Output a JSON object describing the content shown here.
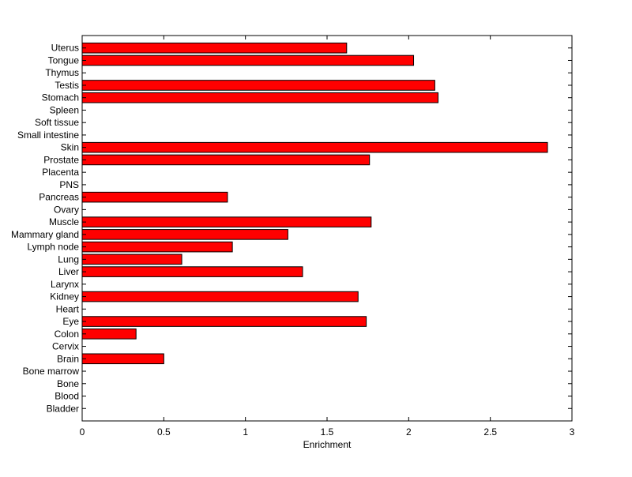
{
  "chart_data": {
    "type": "bar",
    "orientation": "horizontal",
    "title": "",
    "xlabel": "Enrichment",
    "ylabel": "",
    "xlim": [
      0,
      3
    ],
    "xticks": [
      0,
      0.5,
      1,
      1.5,
      2,
      2.5,
      3
    ],
    "xtick_labels": [
      "0",
      "0.5",
      "1",
      "1.5",
      "2",
      "2.5",
      "3"
    ],
    "grid": false,
    "legend": "none",
    "bar_color": "#ff0000",
    "bar_edge_color": "#000000",
    "categories": [
      "Uterus",
      "Tongue",
      "Thymus",
      "Testis",
      "Stomach",
      "Spleen",
      "Soft tissue",
      "Small intestine",
      "Skin",
      "Prostate",
      "Placenta",
      "PNS",
      "Pancreas",
      "Ovary",
      "Muscle",
      "Mammary gland",
      "Lymph node",
      "Lung",
      "Liver",
      "Larynx",
      "Kidney",
      "Heart",
      "Eye",
      "Colon",
      "Cervix",
      "Brain",
      "Bone marrow",
      "Bone",
      "Blood",
      "Bladder"
    ],
    "values": [
      1.62,
      2.03,
      0,
      2.16,
      2.18,
      0,
      0,
      0,
      2.85,
      1.76,
      0,
      0,
      0.89,
      0,
      1.77,
      1.26,
      0.92,
      0.61,
      1.35,
      0,
      1.69,
      0,
      1.74,
      0.33,
      0,
      0.5,
      0,
      0,
      0,
      0
    ]
  }
}
